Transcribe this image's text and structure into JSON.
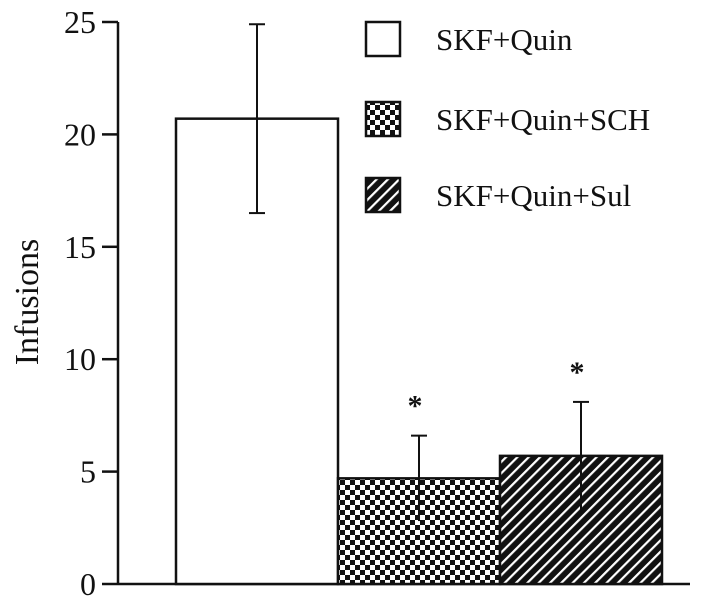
{
  "chart_data": {
    "type": "bar",
    "title": "",
    "xlabel": "",
    "ylabel": "Infusions",
    "ylim": [
      0,
      25
    ],
    "yticks": [
      0,
      5,
      10,
      15,
      20,
      25
    ],
    "grid": false,
    "legend_position": "top-right",
    "series": [
      {
        "name": "SKF+Quin",
        "value": 20.7,
        "error": 4.2,
        "significant": false,
        "pattern": "white"
      },
      {
        "name": "SKF+Quin+SCH",
        "value": 4.7,
        "error": 1.9,
        "significant": true,
        "pattern": "checker"
      },
      {
        "name": "SKF+Quin+Sul",
        "value": 5.7,
        "error": 2.4,
        "significant": true,
        "pattern": "diagonal"
      }
    ],
    "significance_marker": "*"
  }
}
